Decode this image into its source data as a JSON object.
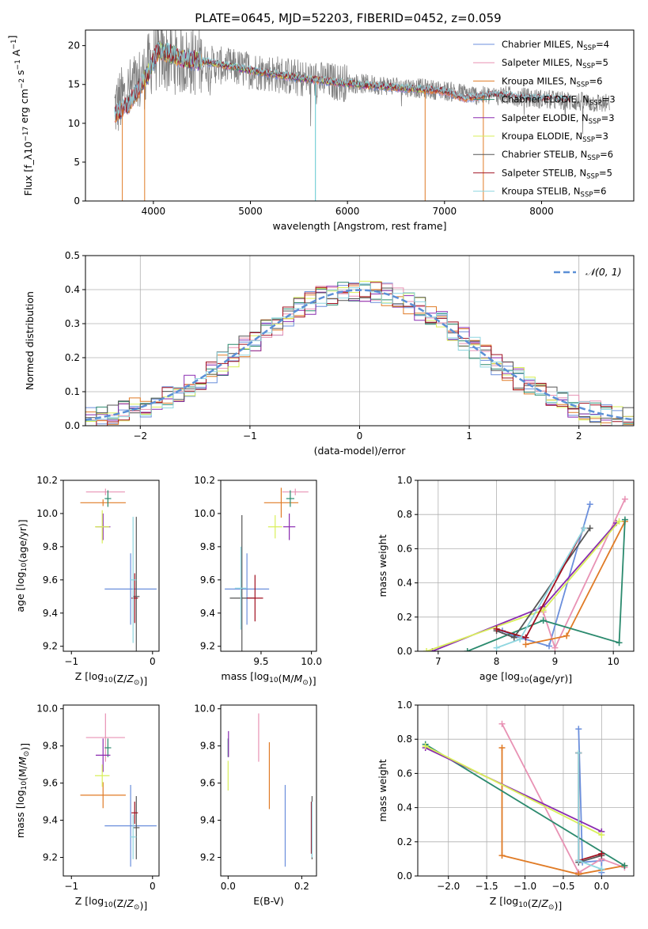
{
  "figure_title": "PLATE=0645, MJD=52203, FIBERID=0452, z=0.059",
  "colors": {
    "Chabrier MILES": "#6b8fdc",
    "Salpeter MILES": "#e892b4",
    "Kroupa MILES": "#e07b26",
    "Chabrier ELODIE": "#2b8a6e",
    "Salpeter ELODIE": "#8a2bb0",
    "Kroupa ELODIE": "#d9ef5a",
    "Chabrier STELIB": "#555555",
    "Salpeter STELIB": "#a01020",
    "Kroupa STELIB": "#8fd6e0",
    "gauss": "#5b8fd6"
  },
  "chart_data": [
    {
      "id": "spectrum",
      "type": "line",
      "xlabel": "wavelength [Angstrom, rest frame]",
      "ylabel": "Flux [f_λ10^-17 erg cm^-2 s^-1 A^-1]",
      "xlim": [
        3300,
        8950
      ],
      "ylim": [
        0,
        22
      ],
      "xticks": [
        4000,
        5000,
        6000,
        7000,
        8000
      ],
      "yticks": [
        0,
        5,
        10,
        15,
        20
      ],
      "legend_position": "upper-right",
      "legend": [
        {
          "model": "Chabrier MILES",
          "label": "Chabrier MILES, N",
          "sub": "SSP",
          "suffix": "=4"
        },
        {
          "model": "Salpeter MILES",
          "label": "Salpeter MILES, N",
          "sub": "SSP",
          "suffix": "=5"
        },
        {
          "model": "Kroupa MILES",
          "label": "Kroupa MILES, N",
          "sub": "SSP",
          "suffix": "=6"
        },
        {
          "model": "Chabrier ELODIE",
          "label": "Chabrier ELODIE, N",
          "sub": "SSP",
          "suffix": "=3"
        },
        {
          "model": "Salpeter ELODIE",
          "label": "Salpeter ELODIE, N",
          "sub": "SSP",
          "suffix": "=3"
        },
        {
          "model": "Kroupa ELODIE",
          "label": "Kroupa ELODIE, N",
          "sub": "SSP",
          "suffix": "=3"
        },
        {
          "model": "Chabrier STELIB",
          "label": "Chabrier STELIB, N",
          "sub": "SSP",
          "suffix": "=6"
        },
        {
          "model": "Salpeter STELIB",
          "label": "Salpeter STELIB, N",
          "sub": "SSP",
          "suffix": "=5"
        },
        {
          "model": "Kroupa STELIB",
          "label": "Kroupa STELIB, N",
          "sub": "SSP",
          "suffix": "=6"
        }
      ],
      "data_profile": [
        [
          3600,
          12
        ],
        [
          3900,
          16
        ],
        [
          4000,
          18.5
        ],
        [
          4300,
          18
        ],
        [
          4500,
          17.8
        ],
        [
          4900,
          17
        ],
        [
          5200,
          16.5
        ],
        [
          5500,
          15.8
        ],
        [
          6000,
          15.2
        ],
        [
          6500,
          14.8
        ],
        [
          7000,
          14.2
        ],
        [
          7400,
          13.5
        ],
        [
          7600,
          13.6
        ],
        [
          8100,
          13
        ],
        [
          8700,
          12.5
        ]
      ],
      "model_profile": [
        [
          3600,
          11
        ],
        [
          3750,
          12.5
        ],
        [
          3950,
          16.5
        ],
        [
          4050,
          19.5
        ],
        [
          4300,
          18.3
        ],
        [
          4600,
          17.8
        ],
        [
          5000,
          16.8
        ],
        [
          5500,
          15.8
        ],
        [
          6000,
          15.1
        ],
        [
          6500,
          14.6
        ],
        [
          7000,
          14.1
        ],
        [
          7200,
          13.2
        ],
        [
          7500,
          13.7
        ],
        [
          7900,
          13.2
        ],
        [
          8200,
          13
        ]
      ],
      "model_ranges": {
        "Chabrier MILES": [
          3600,
          7400
        ],
        "Salpeter MILES": [
          3600,
          7400
        ],
        "Kroupa MILES": [
          3600,
          7400
        ],
        "Chabrier ELODIE": [
          3900,
          6800
        ],
        "Salpeter ELODIE": [
          3900,
          6800
        ],
        "Kroupa ELODIE": [
          3900,
          6800
        ],
        "Chabrier STELIB": [
          3600,
          8300
        ],
        "Salpeter STELIB": [
          3600,
          8300
        ],
        "Kroupa STELIB": [
          3600,
          8300
        ]
      },
      "drops": [
        [
          3680,
          0
        ],
        [
          3910,
          0
        ],
        [
          5670,
          0
        ],
        [
          6800,
          0
        ],
        [
          7400,
          0
        ]
      ]
    },
    {
      "id": "residuals",
      "type": "step",
      "xlabel": "(data-model)/error",
      "ylabel": "Normed distribution",
      "xlim": [
        -2.5,
        2.5
      ],
      "ylim": [
        0,
        0.5
      ],
      "xticks": [
        -2,
        -1,
        0,
        1,
        2
      ],
      "yticks": [
        0.0,
        0.1,
        0.2,
        0.3,
        0.4,
        0.5
      ],
      "grid": true,
      "legend_position": "upper-right",
      "legend_label": "𝒩(0, 1)",
      "bin_width": 0.1,
      "gaussian": {
        "mean": 0,
        "sigma": 1
      }
    },
    {
      "id": "age-vs-Z",
      "type": "errorbar",
      "xlabel": "Z [log10(Z/Z⊙)]",
      "ylabel": "age  [log10(age/yr)]",
      "xlim": [
        -1.1,
        0.08
      ],
      "ylim": [
        9.17,
        10.2
      ],
      "xticks": [
        -1,
        0
      ],
      "yticks": [
        9.2,
        9.4,
        9.6,
        9.8,
        10.0,
        10.2
      ],
      "points": [
        {
          "model": "Chabrier MILES",
          "x": -0.27,
          "xerr": 0.32,
          "y": 9.545,
          "yerr": 0.215
        },
        {
          "model": "Salpeter MILES",
          "x": -0.58,
          "xerr": 0.24,
          "y": 10.13,
          "yerr": 0.02
        },
        {
          "model": "Kroupa MILES",
          "x": -0.61,
          "xerr": 0.28,
          "y": 10.065,
          "yerr": 0.02
        },
        {
          "model": "Chabrier ELODIE",
          "x": -0.55,
          "xerr": 0.04,
          "y": 10.09,
          "yerr": 0.05
        },
        {
          "model": "Salpeter ELODIE",
          "x": -0.61,
          "xerr": 0.09,
          "y": 9.92,
          "yerr": 0.08
        },
        {
          "model": "Kroupa ELODIE",
          "x": -0.62,
          "xerr": 0.09,
          "y": 9.92,
          "yerr": 0.1
        },
        {
          "model": "Chabrier STELIB",
          "x": -0.2,
          "xerr": 0.04,
          "y": 9.5,
          "yerr": 0.48
        },
        {
          "model": "Salpeter STELIB",
          "x": -0.22,
          "xerr": 0.04,
          "y": 9.49,
          "yerr": 0.15
        },
        {
          "model": "Kroupa STELIB",
          "x": -0.24,
          "xerr": 0.04,
          "y": 9.6,
          "yerr": 0.38
        }
      ]
    },
    {
      "id": "age-vs-mass",
      "type": "errorbar",
      "xlabel": "mass [log10(M/M⊙)]",
      "ylabel": "",
      "xlim": [
        9.1,
        10.05
      ],
      "ylim": [
        9.17,
        10.2
      ],
      "xticks": [
        9.5,
        10.0
      ],
      "yticks": [
        9.2,
        9.4,
        9.6,
        9.8,
        10.0,
        10.2
      ],
      "points": [
        {
          "model": "Chabrier MILES",
          "x": 9.36,
          "xerr": 0.22,
          "y": 9.545,
          "yerr": 0.215
        },
        {
          "model": "Salpeter MILES",
          "x": 9.84,
          "xerr": 0.13,
          "y": 10.13,
          "yerr": 0.02
        },
        {
          "model": "Kroupa MILES",
          "x": 9.7,
          "xerr": 0.17,
          "y": 10.065,
          "yerr": 0.09
        },
        {
          "model": "Chabrier ELODIE",
          "x": 9.79,
          "xerr": 0.04,
          "y": 10.09,
          "yerr": 0.05
        },
        {
          "model": "Salpeter ELODIE",
          "x": 9.78,
          "xerr": 0.06,
          "y": 9.92,
          "yerr": 0.08
        },
        {
          "model": "Kroupa ELODIE",
          "x": 9.64,
          "xerr": 0.07,
          "y": 9.92,
          "yerr": 0.07
        },
        {
          "model": "Chabrier STELIB",
          "x": 9.31,
          "xerr": 0.12,
          "y": 9.49,
          "yerr": 0.5
        },
        {
          "model": "Salpeter STELIB",
          "x": 9.44,
          "xerr": 0.08,
          "y": 9.49,
          "yerr": 0.14
        },
        {
          "model": "Kroupa STELIB",
          "x": 9.3,
          "xerr": 0.06,
          "y": 9.55,
          "yerr": 0.25
        }
      ]
    },
    {
      "id": "mass-weight-vs-age",
      "type": "line",
      "xlabel": "age  [log10(age/yr)]",
      "ylabel": "mass weight",
      "xlim": [
        6.65,
        10.35
      ],
      "ylim": [
        0,
        1.0
      ],
      "xticks": [
        7,
        8,
        9,
        10
      ],
      "yticks": [
        0.0,
        0.2,
        0.4,
        0.6,
        0.8,
        1.0
      ],
      "grid": true,
      "series": [
        {
          "model": "Chabrier MILES",
          "points": [
            [
              8.1,
              0.12
            ],
            [
              8.3,
              0.09
            ],
            [
              8.9,
              0.03
            ],
            [
              9.6,
              0.86
            ]
          ]
        },
        {
          "model": "Salpeter MILES",
          "points": [
            [
              8.8,
              0.23
            ],
            [
              9.0,
              0.02
            ],
            [
              10.2,
              0.89
            ]
          ]
        },
        {
          "model": "Kroupa MILES",
          "points": [
            [
              8.5,
              0.04
            ],
            [
              9.2,
              0.09
            ],
            [
              10.2,
              0.76
            ]
          ]
        },
        {
          "model": "Chabrier ELODIE",
          "points": [
            [
              7.5,
              0.0
            ],
            [
              8.8,
              0.18
            ],
            [
              10.1,
              0.05
            ],
            [
              10.2,
              0.77
            ]
          ]
        },
        {
          "model": "Salpeter ELODIE",
          "points": [
            [
              6.9,
              0.0
            ],
            [
              8.8,
              0.26
            ],
            [
              10.05,
              0.75
            ]
          ]
        },
        {
          "model": "Kroupa ELODIE",
          "points": [
            [
              6.8,
              0.0
            ],
            [
              8.8,
              0.24
            ],
            [
              10.1,
              0.76
            ]
          ]
        },
        {
          "model": "Chabrier STELIB",
          "points": [
            [
              8.0,
              0.12
            ],
            [
              8.3,
              0.08
            ],
            [
              9.6,
              0.72
            ]
          ]
        },
        {
          "model": "Salpeter STELIB",
          "points": [
            [
              8.0,
              0.13
            ],
            [
              8.5,
              0.08
            ],
            [
              9.5,
              0.72
            ]
          ]
        },
        {
          "model": "Kroupa STELIB",
          "points": [
            [
              8.0,
              0.02
            ],
            [
              8.4,
              0.07
            ],
            [
              9.5,
              0.72
            ]
          ]
        }
      ]
    },
    {
      "id": "mass-vs-Z",
      "type": "errorbar",
      "xlabel": "Z [log10(Z/Z⊙)]",
      "ylabel": "mass [log10(M/M⊙)]",
      "xlim": [
        -1.1,
        0.08
      ],
      "ylim": [
        9.1,
        10.02
      ],
      "xticks": [
        -1,
        0
      ],
      "yticks": [
        9.2,
        9.4,
        9.6,
        9.8,
        10.0
      ],
      "points": [
        {
          "model": "Chabrier MILES",
          "x": -0.27,
          "xerr": 0.32,
          "y": 9.37,
          "yerr": 0.22
        },
        {
          "model": "Salpeter MILES",
          "x": -0.58,
          "xerr": 0.24,
          "y": 9.845,
          "yerr": 0.13
        },
        {
          "model": "Kroupa MILES",
          "x": -0.61,
          "xerr": 0.28,
          "y": 9.535,
          "yerr": 0.07
        },
        {
          "model": "Chabrier ELODIE",
          "x": -0.55,
          "xerr": 0.04,
          "y": 9.79,
          "yerr": 0.05
        },
        {
          "model": "Salpeter ELODIE",
          "x": -0.61,
          "xerr": 0.09,
          "y": 9.75,
          "yerr": 0.09
        },
        {
          "model": "Kroupa ELODIE",
          "x": -0.62,
          "xerr": 0.09,
          "y": 9.64,
          "yerr": 0.06
        },
        {
          "model": "Chabrier STELIB",
          "x": -0.2,
          "xerr": 0.04,
          "y": 9.36,
          "yerr": 0.17
        },
        {
          "model": "Salpeter STELIB",
          "x": -0.22,
          "xerr": 0.04,
          "y": 9.44,
          "yerr": 0.06
        },
        {
          "model": "Kroupa STELIB",
          "x": -0.24,
          "xerr": 0.04,
          "y": 9.31,
          "yerr": 0.12
        }
      ]
    },
    {
      "id": "mass-vs-EBV",
      "type": "errorbar",
      "xlabel": "E(B-V)",
      "ylabel": "",
      "xlim": [
        -0.02,
        0.24
      ],
      "ylim": [
        9.1,
        10.02
      ],
      "xticks": [
        0.0,
        0.2
      ],
      "yticks": [
        9.2,
        9.4,
        9.6,
        9.8,
        10.0
      ],
      "points": [
        {
          "model": "Chabrier MILES",
          "x": 0.155,
          "xerr": 0,
          "y": 9.37,
          "yerr": 0.22
        },
        {
          "model": "Salpeter MILES",
          "x": 0.083,
          "xerr": 0,
          "y": 9.845,
          "yerr": 0.13
        },
        {
          "model": "Kroupa MILES",
          "x": 0.112,
          "xerr": 0,
          "y": 9.64,
          "yerr": 0.18
        },
        {
          "model": "Chabrier ELODIE",
          "x": 0.0,
          "xerr": 0,
          "y": 9.79,
          "yerr": 0.05
        },
        {
          "model": "Salpeter ELODIE",
          "x": 0.001,
          "xerr": 0,
          "y": 9.81,
          "yerr": 0.07
        },
        {
          "model": "Kroupa ELODIE",
          "x": 0.0,
          "xerr": 0,
          "y": 9.64,
          "yerr": 0.08
        },
        {
          "model": "Chabrier STELIB",
          "x": 0.228,
          "xerr": 0,
          "y": 9.36,
          "yerr": 0.17
        },
        {
          "model": "Salpeter STELIB",
          "x": 0.226,
          "xerr": 0,
          "y": 9.36,
          "yerr": 0.14
        },
        {
          "model": "Kroupa STELIB",
          "x": 0.228,
          "xerr": 0,
          "y": 9.35,
          "yerr": 0.15
        }
      ]
    },
    {
      "id": "mass-weight-vs-Z",
      "type": "line",
      "xlabel": "Z [log10(Z/Z⊙)]",
      "ylabel": "mass weight",
      "xlim": [
        -2.4,
        0.42
      ],
      "ylim": [
        0,
        1.0
      ],
      "xticks": [
        -2.0,
        -1.5,
        -1.0,
        -0.5,
        0.0
      ],
      "yticks": [
        0.0,
        0.2,
        0.4,
        0.6,
        0.8,
        1.0
      ],
      "grid": true,
      "series": [
        {
          "model": "Chabrier MILES",
          "points": [
            [
              -0.3,
              0.86
            ],
            [
              -0.25,
              0.08
            ],
            [
              0.0,
              0.09
            ],
            [
              0.0,
              0.02
            ]
          ]
        },
        {
          "model": "Salpeter MILES",
          "points": [
            [
              -1.3,
              0.89
            ],
            [
              -0.3,
              0.02
            ],
            [
              0.0,
              0.1
            ],
            [
              0.3,
              0.05
            ]
          ]
        },
        {
          "model": "Kroupa MILES",
          "points": [
            [
              -1.3,
              0.75
            ],
            [
              -1.3,
              0.12
            ],
            [
              -0.3,
              0.01
            ],
            [
              0.3,
              0.06
            ]
          ]
        },
        {
          "model": "Chabrier ELODIE",
          "points": [
            [
              -2.3,
              0.77
            ],
            [
              0.3,
              0.06
            ]
          ]
        },
        {
          "model": "Salpeter ELODIE",
          "points": [
            [
              -2.3,
              0.75
            ],
            [
              0.0,
              0.26
            ]
          ]
        },
        {
          "model": "Kroupa ELODIE",
          "points": [
            [
              -2.3,
              0.76
            ],
            [
              0.0,
              0.24
            ]
          ]
        },
        {
          "model": "Chabrier STELIB",
          "points": [
            [
              -0.3,
              0.72
            ],
            [
              -0.3,
              0.08
            ],
            [
              0.0,
              0.12
            ]
          ]
        },
        {
          "model": "Salpeter STELIB",
          "points": [
            [
              -0.3,
              0.72
            ],
            [
              -0.3,
              0.09
            ],
            [
              0.0,
              0.13
            ]
          ]
        },
        {
          "model": "Kroupa STELIB",
          "points": [
            [
              -0.3,
              0.72
            ],
            [
              -0.3,
              0.09
            ],
            [
              0.0,
              0.04
            ]
          ]
        }
      ]
    }
  ]
}
